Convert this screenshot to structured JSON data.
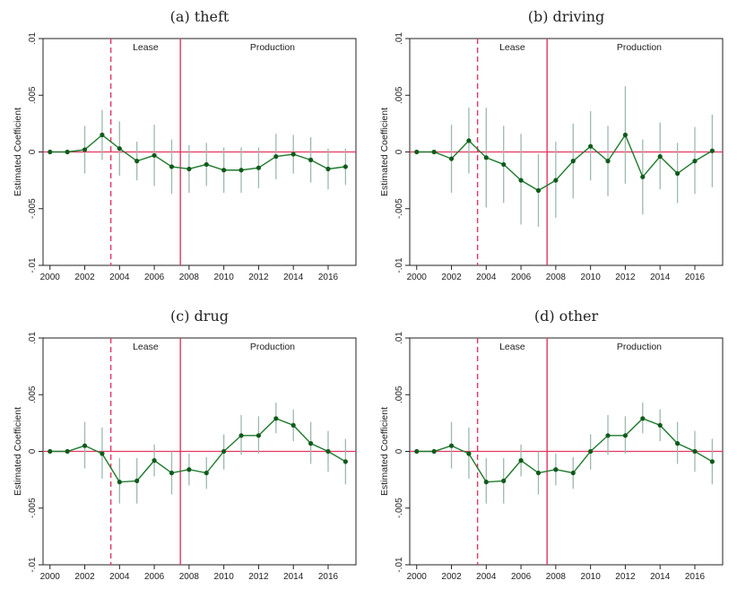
{
  "chart_data": [
    {
      "type": "line",
      "title": "(a) theft",
      "ylabel": "Estimated Coefficient",
      "xlabel": "",
      "xlim": [
        1999.6,
        2017.6
      ],
      "ylim": [
        -0.01,
        0.01
      ],
      "xticks": [
        2000,
        2002,
        2004,
        2006,
        2008,
        2010,
        2012,
        2014,
        2016
      ],
      "xtick_labels": [
        "2000",
        "2002",
        "2004",
        "2006",
        "2008",
        "2010",
        "2012",
        "2014",
        "2016"
      ],
      "yticks": [
        -0.01,
        -0.005,
        0,
        0.005,
        0.01
      ],
      "ytick_labels": [
        "-.01",
        "-.005",
        "0",
        ".005",
        ".01"
      ],
      "zero_line": 0,
      "lease_line_x": 2003.5,
      "production_line_x": 2007.5,
      "lease_label": "Lease",
      "production_label": "Production",
      "lease_label_x": 2005.5,
      "production_label_x": 2012.8,
      "x": [
        2000,
        2001,
        2002,
        2003,
        2004,
        2005,
        2006,
        2007,
        2008,
        2009,
        2010,
        2011,
        2012,
        2013,
        2014,
        2015,
        2016,
        2017
      ],
      "values": [
        0,
        0,
        0.0002,
        0.0015,
        0.0003,
        -0.0008,
        -0.0003,
        -0.0013,
        -0.0015,
        -0.0011,
        -0.0016,
        -0.0016,
        -0.0014,
        -0.0004,
        -0.0002,
        -0.0007,
        -0.0015,
        -0.0013
      ],
      "ci_low": [
        0,
        0,
        -0.0019,
        -0.0007,
        -0.0021,
        -0.0025,
        -0.003,
        -0.0037,
        -0.0036,
        -0.003,
        -0.0036,
        -0.0036,
        -0.0032,
        -0.0024,
        -0.0019,
        -0.0027,
        -0.0033,
        -0.0029
      ],
      "ci_high": [
        0,
        0,
        0.0023,
        0.0037,
        0.0027,
        0.0009,
        0.0024,
        0.0011,
        0.0006,
        0.0008,
        0.0004,
        0.0004,
        0.0004,
        0.0016,
        0.0015,
        0.0013,
        0.0003,
        0.0003
      ]
    },
    {
      "type": "line",
      "title": "(b) driving",
      "ylabel": "Estimated Coefficient",
      "xlabel": "",
      "xlim": [
        1999.6,
        2017.6
      ],
      "ylim": [
        -0.01,
        0.01
      ],
      "xticks": [
        2000,
        2002,
        2004,
        2006,
        2008,
        2010,
        2012,
        2014,
        2016
      ],
      "xtick_labels": [
        "2000",
        "2002",
        "2004",
        "2006",
        "2008",
        "2010",
        "2012",
        "2014",
        "2016"
      ],
      "yticks": [
        -0.01,
        -0.005,
        0,
        0.005,
        0.01
      ],
      "ytick_labels": [
        "-.01",
        "-.005",
        "0",
        ".005",
        ".01"
      ],
      "zero_line": 0,
      "lease_line_x": 2003.5,
      "production_line_x": 2007.5,
      "lease_label": "Lease",
      "production_label": "Production",
      "lease_label_x": 2005.5,
      "production_label_x": 2012.8,
      "x": [
        2000,
        2001,
        2002,
        2003,
        2004,
        2005,
        2006,
        2007,
        2008,
        2009,
        2010,
        2011,
        2012,
        2013,
        2014,
        2015,
        2016,
        2017
      ],
      "values": [
        0,
        0,
        -0.0006,
        0.001,
        -0.0005,
        -0.0011,
        -0.0025,
        -0.0034,
        -0.0025,
        -0.0008,
        0.0005,
        -0.0008,
        0.0015,
        -0.0022,
        -0.0004,
        -0.0019,
        -0.0008,
        0.0001
      ],
      "ci_low": [
        0,
        0,
        -0.0036,
        -0.0019,
        -0.0049,
        -0.0045,
        -0.0064,
        -0.0066,
        -0.0058,
        -0.0041,
        -0.0025,
        -0.0039,
        -0.0028,
        -0.0055,
        -0.0033,
        -0.0045,
        -0.0037,
        -0.0031
      ],
      "ci_high": [
        0,
        0,
        0.0024,
        0.0039,
        0.0039,
        0.0023,
        0.0016,
        -0.0002,
        0.0009,
        0.0025,
        0.0036,
        0.0023,
        0.0058,
        0.0011,
        0.0026,
        0.0008,
        0.0022,
        0.0033
      ]
    },
    {
      "type": "line",
      "title": "(c) drug",
      "ylabel": "Estimated Coefficient",
      "xlabel": "",
      "xlim": [
        1999.6,
        2017.6
      ],
      "ylim": [
        -0.01,
        0.01
      ],
      "xticks": [
        2000,
        2002,
        2004,
        2006,
        2008,
        2010,
        2012,
        2014,
        2016
      ],
      "xtick_labels": [
        "2000",
        "2002",
        "2004",
        "2006",
        "2008",
        "2010",
        "2012",
        "2014",
        "2016"
      ],
      "yticks": [
        -0.01,
        -0.005,
        0,
        0.005,
        0.01
      ],
      "ytick_labels": [
        "-.01",
        "-.005",
        "0",
        ".005",
        ".01"
      ],
      "zero_line": 0,
      "lease_line_x": 2003.5,
      "production_line_x": 2007.5,
      "lease_label": "Lease",
      "production_label": "Production",
      "lease_label_x": 2005.5,
      "production_label_x": 2012.8,
      "x": [
        2000,
        2001,
        2002,
        2003,
        2004,
        2005,
        2006,
        2007,
        2008,
        2009,
        2010,
        2011,
        2012,
        2013,
        2014,
        2015,
        2016,
        2017
      ],
      "values": [
        0,
        0,
        0.0005,
        -0.0002,
        -0.0027,
        -0.0026,
        -0.0008,
        -0.0019,
        -0.0016,
        -0.0019,
        0.0,
        0.0014,
        0.0014,
        0.0029,
        0.0023,
        0.0007,
        0.0,
        -0.0009
      ],
      "ci_low": [
        0,
        0,
        -0.0015,
        -0.0024,
        -0.0046,
        -0.0046,
        -0.0022,
        -0.0038,
        -0.003,
        -0.0033,
        -0.0016,
        -0.0003,
        -0.0002,
        0.0016,
        0.0009,
        -0.0011,
        -0.0018,
        -0.0029
      ],
      "ci_high": [
        0,
        0,
        0.0026,
        0.0021,
        -0.0006,
        -0.0006,
        0.0006,
        0.0,
        -0.0002,
        -0.0005,
        0.0015,
        0.0032,
        0.0031,
        0.0043,
        0.0037,
        0.0026,
        0.0018,
        0.0011
      ]
    },
    {
      "type": "line",
      "title": "(d) other",
      "ylabel": "Estimated Coefficient",
      "xlabel": "",
      "xlim": [
        1999.6,
        2017.6
      ],
      "ylim": [
        -0.01,
        0.01
      ],
      "xticks": [
        2000,
        2002,
        2004,
        2006,
        2008,
        2010,
        2012,
        2014,
        2016
      ],
      "xtick_labels": [
        "2000",
        "2002",
        "2004",
        "2006",
        "2008",
        "2010",
        "2012",
        "2014",
        "2016"
      ],
      "yticks": [
        -0.01,
        -0.005,
        0,
        0.005,
        0.01
      ],
      "ytick_labels": [
        "-.01",
        "-.005",
        "0",
        ".005",
        ".01"
      ],
      "zero_line": 0,
      "lease_line_x": 2003.5,
      "production_line_x": 2007.5,
      "lease_label": "Lease",
      "production_label": "Production",
      "lease_label_x": 2005.5,
      "production_label_x": 2012.8,
      "x": [
        2000,
        2001,
        2002,
        2003,
        2004,
        2005,
        2006,
        2007,
        2008,
        2009,
        2010,
        2011,
        2012,
        2013,
        2014,
        2015,
        2016,
        2017
      ],
      "values": [
        0,
        0,
        0.0005,
        -0.0002,
        -0.0027,
        -0.0026,
        -0.0008,
        -0.0019,
        -0.0016,
        -0.0019,
        0.0,
        0.0014,
        0.0014,
        0.0029,
        0.0023,
        0.0007,
        0.0,
        -0.0009
      ],
      "ci_low": [
        0,
        0,
        -0.0015,
        -0.0024,
        -0.0046,
        -0.0046,
        -0.0022,
        -0.0038,
        -0.003,
        -0.0033,
        -0.0016,
        -0.0003,
        -0.0002,
        0.0016,
        0.0009,
        -0.0011,
        -0.0018,
        -0.0029
      ],
      "ci_high": [
        0,
        0,
        0.0026,
        0.0021,
        -0.0006,
        -0.0006,
        0.0006,
        0.0,
        -0.0002,
        -0.0005,
        0.0015,
        0.0032,
        0.0031,
        0.0043,
        0.0037,
        0.0026,
        0.0018,
        0.0011
      ]
    }
  ],
  "colors": {
    "series_line": "#1f7a2e",
    "series_marker": "#0f5a1c",
    "ci_bar": "#9fb8ad",
    "zero_line": "#e2365f",
    "event_line": "#e2365f",
    "axis": "#222222"
  }
}
